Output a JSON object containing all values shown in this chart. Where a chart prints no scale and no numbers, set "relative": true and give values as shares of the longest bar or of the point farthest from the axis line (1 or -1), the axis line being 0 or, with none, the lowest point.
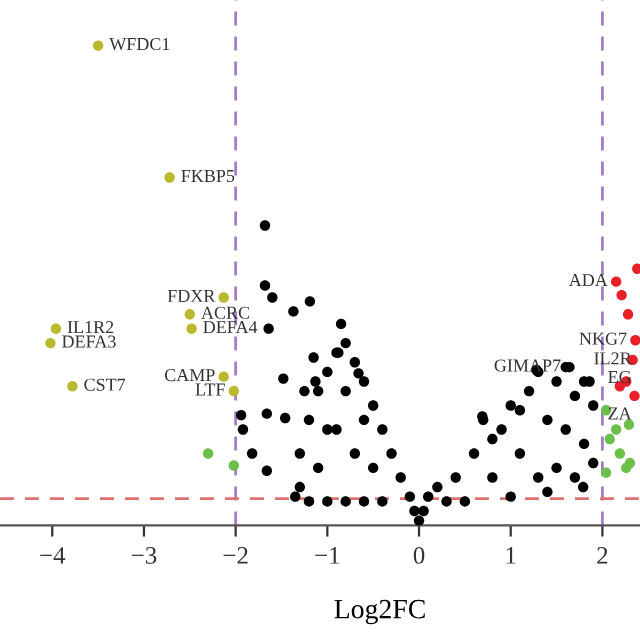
{
  "chart_data": {
    "type": "scatter",
    "relative": true,
    "xlabel": "Log2FC",
    "xlim": [
      -4.57,
      2.41
    ],
    "xticks": [
      {
        "value": -4,
        "label": "−4"
      },
      {
        "value": -3,
        "label": "−3"
      },
      {
        "value": -2,
        "label": "−2"
      },
      {
        "value": -1,
        "label": "−1"
      },
      0,
      1,
      2
    ],
    "grid": false,
    "legend": false,
    "marker": "circle",
    "tick_labels": "x",
    "series": [
      {
        "color": "#000000",
        "x": [
          0,
          -0.05,
          0.05,
          -0.1,
          0.1,
          -0.2,
          0.2,
          -0.3,
          -0.4,
          -0.5,
          -0.6,
          -0.7,
          -0.8,
          -0.85,
          -0.9,
          -1.0,
          -1.1,
          -1.2,
          -1.3,
          -1.3,
          -1.2,
          -1.0,
          -0.8,
          -0.6,
          -0.4,
          -1.1,
          -0.9,
          -0.7,
          -0.5,
          -0.8,
          -0.6,
          -1.0,
          -1.25,
          -1.15,
          -1.68,
          -1.68,
          -1.6,
          -1.37,
          -1.19,
          -1.64,
          -1.94,
          -1.92,
          -1.82,
          -1.66,
          -1.66,
          -1.48,
          -1.46,
          -1.13,
          -1.35,
          -0.88,
          -0.66,
          0.3,
          0.4,
          0.5,
          0.6,
          0.7,
          0.8,
          0.9,
          1.0,
          1.0,
          1.1,
          1.2,
          1.3,
          1.3,
          1.4,
          1.5,
          1.5,
          1.6,
          1.6,
          1.7,
          1.7,
          1.8,
          1.8,
          1.9,
          1.9,
          1.79,
          1.1,
          0.8,
          1.4,
          1.28,
          1.64,
          1.86,
          0.69
        ],
        "values": [
          0.01,
          0.03,
          0.03,
          0.06,
          0.06,
          0.1,
          0.08,
          0.15,
          0.2,
          0.25,
          0.3,
          0.34,
          0.38,
          0.42,
          0.36,
          0.32,
          0.28,
          0.22,
          0.15,
          0.08,
          0.05,
          0.05,
          0.05,
          0.05,
          0.05,
          0.12,
          0.2,
          0.15,
          0.12,
          0.28,
          0.22,
          0.2,
          0.28,
          0.35,
          0.625,
          0.5,
          0.475,
          0.446,
          0.467,
          0.41,
          0.23,
          0.2,
          0.15,
          0.114,
          0.233,
          0.306,
          0.224,
          0.3,
          0.06,
          0.36,
          0.317,
          0.05,
          0.1,
          0.05,
          0.15,
          0.22,
          0.1,
          0.2,
          0.25,
          0.06,
          0.15,
          0.28,
          0.32,
          0.1,
          0.22,
          0.3,
          0.12,
          0.33,
          0.2,
          0.27,
          0.1,
          0.3,
          0.17,
          0.25,
          0.13,
          0.08,
          0.24,
          0.18,
          0.07,
          0.324,
          0.33,
          0.3,
          0.227
        ]
      },
      {
        "color": "#b8b92c",
        "x": [
          -3.5,
          -2.72,
          -2.13,
          -2.5,
          -2.48,
          -3.96,
          -4.02,
          -3.78,
          -2.13,
          -2.02
        ],
        "values": [
          1.0,
          0.725,
          0.475,
          0.44,
          0.41,
          0.41,
          0.38,
          0.29,
          0.31,
          0.28
        ]
      },
      {
        "color": "#6cc04a",
        "x": [
          -2.3,
          -2.02,
          2.04,
          2.15,
          2.08,
          2.19,
          2.26,
          2.04,
          2.3,
          2.29
        ],
        "values": [
          0.15,
          0.125,
          0.24,
          0.2,
          0.18,
          0.15,
          0.12,
          0.11,
          0.13,
          0.21
        ]
      },
      {
        "color": "#e8202a",
        "x": [
          2.15,
          2.38,
          2.21,
          2.28,
          2.36,
          2.33,
          2.19,
          2.26,
          2.35
        ],
        "values": [
          0.508,
          0.535,
          0.48,
          0.44,
          0.386,
          0.345,
          0.29,
          0.3,
          0.27
        ]
      }
    ],
    "annotations": [
      {
        "text": "WFDC1",
        "x": -3.5,
        "y": 1.0
      },
      {
        "text": "FKBP5",
        "x": -2.72,
        "y": 0.725
      },
      {
        "text": "FDXR",
        "x": -2.13,
        "y": 0.475
      },
      {
        "text": "ACRC",
        "x": -2.5,
        "y": 0.44
      },
      {
        "text": "DEFA4",
        "x": -2.48,
        "y": 0.41
      },
      {
        "text": "IL1R2",
        "x": -3.96,
        "y": 0.41
      },
      {
        "text": "DEFA3",
        "x": -4.02,
        "y": 0.38
      },
      {
        "text": "CST7",
        "x": -3.78,
        "y": 0.29
      },
      {
        "text": "CAMP",
        "x": -2.13,
        "y": 0.31
      },
      {
        "text": "LTF",
        "x": -2.02,
        "y": 0.28
      },
      {
        "text": "ADA",
        "x": 2.15,
        "y": 0.508
      },
      {
        "text": "NKG7",
        "x": 2.36,
        "y": 0.386
      },
      {
        "text": "GIMAP7",
        "x": 1.64,
        "y": 0.33
      },
      {
        "text": "IL2R",
        "x": 2.41,
        "y": 0.345
      },
      {
        "text": "EG",
        "x": 2.41,
        "y": 0.306
      },
      {
        "text": "ZA",
        "x": 2.41,
        "y": 0.23
      }
    ],
    "ref_lines": [
      {
        "axis": "x",
        "value": -2,
        "color": "#a77bc9",
        "line_style": "dashed"
      },
      {
        "axis": "x",
        "value": 2,
        "color": "#a77bc9",
        "line_style": "dashed"
      },
      {
        "axis": "y",
        "value": 0.056,
        "color": "#e07070",
        "line_style": "dashed"
      }
    ]
  }
}
